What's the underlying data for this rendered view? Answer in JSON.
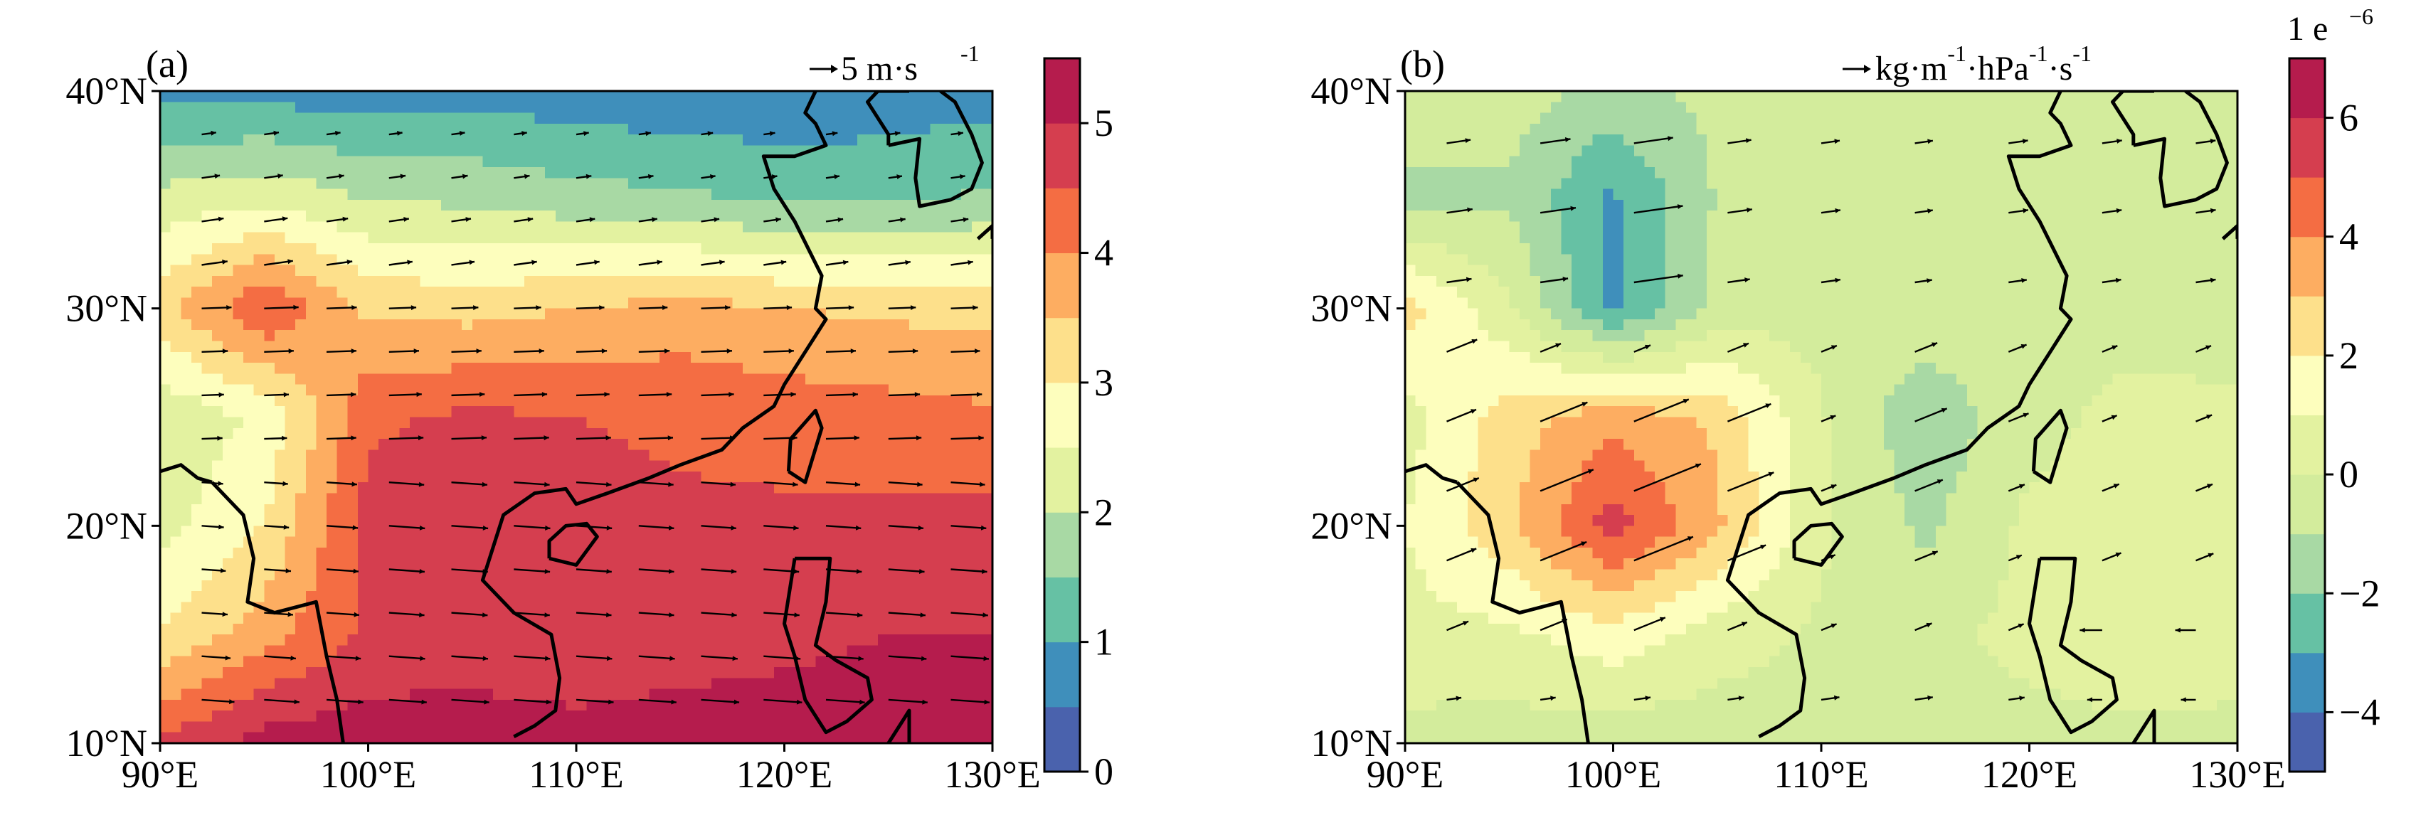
{
  "chart_data": [
    {
      "type": "heatmap",
      "panel_label": "(a)",
      "units_label": "5  m·s",
      "units_superscript": "-1",
      "x_ticks": [
        "90°E",
        "100°E",
        "110°E",
        "120°E",
        "130°E"
      ],
      "x_values": [
        90,
        100,
        110,
        120,
        130
      ],
      "y_ticks": [
        "10°N",
        "20°N",
        "30°N",
        "40°N"
      ],
      "y_values": [
        10,
        20,
        30,
        40
      ],
      "colorbar_ticks": [
        "0",
        "1",
        "2",
        "3",
        "4",
        "5"
      ],
      "colorbar_values": [
        0,
        1,
        2,
        3,
        4,
        5
      ],
      "colorbar_range": [
        0,
        5.5
      ],
      "colormap": [
        "#4a62ad",
        "#3f8fbb",
        "#66c1a4",
        "#a8d9a4",
        "#e3f2a0",
        "#fdfebd",
        "#fde08b",
        "#fdad61",
        "#f46d43",
        "#d53e4f",
        "#b51c4d"
      ],
      "grid_lon": [
        90,
        95,
        100,
        105,
        110,
        115,
        120,
        125,
        130
      ],
      "grid_lat": [
        10,
        15,
        20,
        25,
        30,
        35,
        40
      ],
      "grid_values": [
        [
          4.6,
          5.2,
          5.3,
          5.2,
          5.2,
          5.3,
          5.4,
          5.4,
          5.2
        ],
        [
          3.0,
          3.8,
          4.6,
          4.8,
          4.6,
          4.7,
          4.8,
          5.0,
          5.0
        ],
        [
          2.3,
          3.0,
          4.7,
          4.9,
          4.7,
          4.6,
          4.6,
          4.6,
          4.7
        ],
        [
          2.1,
          2.6,
          4.4,
          4.6,
          4.5,
          4.4,
          4.3,
          4.2,
          4.1
        ],
        [
          3.3,
          4.5,
          3.4,
          3.3,
          3.5,
          3.7,
          3.5,
          3.4,
          3.3
        ],
        [
          2.2,
          2.4,
          2.0,
          1.9,
          1.7,
          1.6,
          1.4,
          1.4,
          1.6
        ],
        [
          0.8,
          0.8,
          0.7,
          0.8,
          0.7,
          0.6,
          0.6,
          0.7,
          0.8
        ]
      ]
    },
    {
      "type": "heatmap",
      "panel_label": "(b)",
      "units_label": "kg·m·hPa·s",
      "units_parts": [
        "kg·m",
        "-1",
        "·hPa",
        "-1",
        "·s",
        "-1"
      ],
      "scale_label": "1 e",
      "scale_exponent": "−6",
      "x_ticks": [
        "90°E",
        "100°E",
        "110°E",
        "120°E",
        "130°E"
      ],
      "x_values": [
        90,
        100,
        110,
        120,
        130
      ],
      "y_ticks": [
        "10°N",
        "20°N",
        "30°N",
        "40°N"
      ],
      "y_values": [
        10,
        20,
        30,
        40
      ],
      "colorbar_ticks": [
        "−4",
        "−2",
        "0",
        "2",
        "4",
        "6"
      ],
      "colorbar_values": [
        -4,
        -2,
        0,
        2,
        4,
        6
      ],
      "colorbar_range": [
        -5,
        7
      ],
      "colormap": [
        "#4a62ad",
        "#3f8fbb",
        "#66c1a4",
        "#a8d9a4",
        "#d3ec9c",
        "#e3f2a0",
        "#fdfebd",
        "#fde08b",
        "#fdad61",
        "#f46d43",
        "#d53e4f",
        "#b51c4d"
      ],
      "grid_lon": [
        90,
        95,
        100,
        105,
        110,
        115,
        120,
        125,
        130
      ],
      "grid_lat": [
        10,
        15,
        20,
        25,
        30,
        35,
        40
      ],
      "grid_values": [
        [
          -0.3,
          -0.5,
          -0.6,
          -0.6,
          -0.4,
          -0.3,
          -0.4,
          -0.3,
          -0.2
        ],
        [
          0.6,
          0.8,
          1.6,
          0.5,
          -0.2,
          -0.3,
          0.3,
          0.8,
          0.3
        ],
        [
          1.0,
          2.8,
          5.5,
          3.2,
          0.2,
          -1.2,
          0.2,
          0.5,
          0.2
        ],
        [
          0.6,
          2.5,
          3.6,
          2.8,
          0.1,
          -1.8,
          -0.3,
          0.3,
          0.2
        ],
        [
          2.4,
          0.2,
          -3.3,
          -0.6,
          -0.4,
          -0.2,
          -0.3,
          -0.4,
          -0.5
        ],
        [
          -1.3,
          -1.2,
          -3.2,
          -0.9,
          -0.4,
          -0.3,
          -0.5,
          -0.4,
          -0.5
        ],
        [
          -0.2,
          -0.5,
          -1.4,
          -0.7,
          -0.3,
          -0.3,
          -0.4,
          -0.5,
          -0.4
        ]
      ]
    }
  ]
}
